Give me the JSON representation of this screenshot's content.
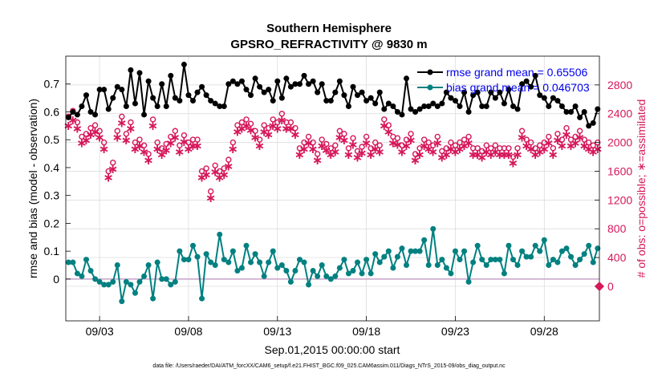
{
  "chart_data": {
    "type": "line",
    "title": "Southern Hemisphere",
    "subtitle": "GPSRO_REFRACTIVITY @ 9830 m",
    "xlabel": "Sep.01,2015 00:00:00 start",
    "ylabel": "rmse and bias (model - observation)",
    "y2label": "# of obs: o=possible; ∗=assimilated",
    "footnote": "data file: /Users/raeder/DAI/ATM_forcXX/CAM6_setup/f.e21.FHIST_BGC.f09_025.CAM6assim.011/Diags_NTrS_2015-09/obs_diag_output.nc",
    "x_tick_labels": [
      "09/03",
      "09/08",
      "09/13",
      "09/18",
      "09/23",
      "09/28"
    ],
    "x_tick_days": [
      3,
      8,
      13,
      18,
      23,
      28
    ],
    "xlim": [
      1.1,
      31.1
    ],
    "ylim": [
      -0.15,
      0.8
    ],
    "y_ticks": [
      0,
      0.1,
      0.2,
      0.3,
      0.4,
      0.5,
      0.6,
      0.7
    ],
    "y2lim": [
      -480,
      3200
    ],
    "y2_ticks": [
      0,
      400,
      800,
      1200,
      1600,
      2000,
      2400,
      2800
    ],
    "grid": true,
    "legend_position": "top-right",
    "colors": {
      "rmse": "#000000",
      "bias": "#008080",
      "obs": "#d6175a",
      "zero_line": "#c8a2c8",
      "grid": "#d8d8d8"
    },
    "series": [
      {
        "name": "rmse grand mean = 0.65506",
        "axis": "left",
        "start_day": 1.25,
        "step_days": 0.25,
        "values": [
          0.58,
          0.6,
          0.59,
          0.62,
          0.66,
          0.6,
          0.59,
          0.68,
          0.68,
          0.61,
          0.65,
          0.69,
          0.68,
          0.62,
          0.75,
          0.63,
          0.74,
          0.59,
          0.71,
          0.65,
          0.62,
          0.7,
          0.62,
          0.73,
          0.65,
          0.64,
          0.77,
          0.66,
          0.64,
          0.67,
          0.69,
          0.66,
          0.64,
          0.63,
          0.62,
          0.62,
          0.7,
          0.71,
          0.7,
          0.71,
          0.68,
          0.66,
          0.72,
          0.69,
          0.67,
          0.68,
          0.64,
          0.71,
          0.65,
          0.72,
          0.69,
          0.7,
          0.7,
          0.73,
          0.7,
          0.71,
          0.67,
          0.7,
          0.64,
          0.64,
          0.67,
          0.71,
          0.66,
          0.62,
          0.69,
          0.66,
          0.67,
          0.64,
          0.65,
          0.63,
          0.67,
          0.61,
          0.63,
          0.62,
          0.6,
          0.59,
          0.72,
          0.61,
          0.6,
          0.61,
          0.62,
          0.62,
          0.63,
          0.62,
          0.63,
          0.67,
          0.65,
          0.64,
          0.62,
          0.67,
          0.6,
          0.66,
          0.67,
          0.62,
          0.62,
          0.67,
          0.65,
          0.67,
          0.63,
          0.68,
          0.62,
          0.61,
          0.7,
          0.71,
          0.69,
          0.73,
          0.66,
          0.65,
          0.62,
          0.65,
          0.64,
          0.62,
          0.6,
          0.6,
          0.62,
          0.58,
          0.6,
          0.55,
          0.56,
          0.61,
          0.58,
          0.69,
          0.64,
          0.66,
          0.65,
          0.68
        ]
      },
      {
        "name": "bias grand mean = 0.046703",
        "axis": "left",
        "start_day": 1.25,
        "step_days": 0.25,
        "values": [
          0.06,
          0.06,
          0.02,
          0.01,
          0.07,
          0.03,
          0.0,
          -0.01,
          -0.02,
          -0.02,
          -0.01,
          0.05,
          -0.08,
          -0.01,
          -0.02,
          -0.05,
          -0.01,
          0.01,
          0.05,
          -0.07,
          0.06,
          0.0,
          0.0,
          -0.02,
          -0.01,
          0.1,
          0.07,
          0.07,
          0.12,
          0.08,
          -0.07,
          0.09,
          0.06,
          0.05,
          0.16,
          0.07,
          0.06,
          0.1,
          0.03,
          0.04,
          0.12,
          0.06,
          0.09,
          0.06,
          0.01,
          0.06,
          0.1,
          0.04,
          0.05,
          0.03,
          -0.01,
          0.03,
          0.07,
          0.06,
          -0.02,
          0.03,
          0.01,
          0.05,
          0.01,
          0.0,
          0.01,
          0.04,
          0.07,
          0.02,
          0.03,
          0.06,
          0.02,
          0.07,
          0.02,
          0.09,
          0.06,
          0.08,
          0.1,
          0.04,
          0.08,
          0.11,
          0.05,
          0.1,
          0.1,
          0.1,
          0.14,
          0.05,
          0.18,
          0.05,
          0.07,
          0.04,
          0.02,
          0.1,
          0.07,
          0.1,
          -0.01,
          0.06,
          0.12,
          0.07,
          0.05,
          0.07,
          0.07,
          0.07,
          0.02,
          0.12,
          0.07,
          0.05,
          0.1,
          0.08,
          0.08,
          0.12,
          0.1,
          0.14,
          0.05,
          0.07,
          0.06,
          0.1,
          0.11,
          0.08,
          0.05,
          0.07,
          0.09,
          0.12,
          0.06,
          0.11,
          0.04,
          0.08,
          0.05,
          -0.01,
          0.03,
          0.06
        ]
      },
      {
        "name": "# of obs possible",
        "axis": "right",
        "marker": "o",
        "start_day": 1.25,
        "step_days": 0.25,
        "values": [
          2360,
          2440,
          2280,
          2080,
          2120,
          2200,
          2240,
          2160,
          2000,
          1600,
          1720,
          2160,
          2360,
          2120,
          2280,
          2000,
          2040,
          1960,
          1840,
          2320,
          2000,
          1920,
          1980,
          2080,
          2160,
          1960,
          2100,
          2000,
          2040,
          2040,
          1600,
          1640,
          1320,
          1680,
          1600,
          1640,
          1760,
          2000,
          2240,
          2280,
          2320,
          2260,
          2160,
          2040,
          2240,
          2200,
          2320,
          2280,
          2400,
          2280,
          2280,
          2200,
          1920,
          2000,
          2080,
          2000,
          1840,
          2040,
          1980,
          1920,
          1960,
          2160,
          2120,
          1920,
          2060,
          1880,
          1940,
          2080,
          1920,
          2000,
          1960,
          2320,
          2240,
          2080,
          2060,
          1960,
          2040,
          2120,
          1840,
          1920,
          2040,
          2000,
          1960,
          2080,
          1880,
          1920,
          2000,
          1960,
          2000,
          2040,
          2080,
          1920,
          1920,
          1880,
          1960,
          1920,
          1960,
          1920,
          1920,
          1920,
          1800,
          1920,
          2160,
          2040,
          2000,
          1920,
          1960,
          2000,
          2080,
          1920,
          2120,
          2040,
          2200,
          2040,
          2080,
          2160,
          2040,
          2000,
          1960,
          2000,
          1960,
          1920,
          1920,
          2040,
          1960,
          2000
        ]
      },
      {
        "name": "# of obs assimilated",
        "axis": "right",
        "marker": "*",
        "start_day": 1.25,
        "step_days": 0.25,
        "values": [
          2240,
          2320,
          2200,
          2000,
          2040,
          2120,
          2160,
          2080,
          1920,
          1520,
          1640,
          2080,
          2280,
          2040,
          2200,
          1920,
          1960,
          1880,
          1760,
          2240,
          1920,
          1840,
          1900,
          2000,
          2080,
          1880,
          2020,
          1920,
          1960,
          1960,
          1520,
          1560,
          1240,
          1600,
          1520,
          1560,
          1680,
          1920,
          2160,
          2200,
          2240,
          2180,
          2080,
          1960,
          2160,
          2120,
          2240,
          2200,
          2320,
          2200,
          2200,
          2120,
          1840,
          1920,
          2000,
          1920,
          1760,
          1960,
          1900,
          1840,
          1880,
          2080,
          2040,
          1840,
          1980,
          1800,
          1860,
          2000,
          1840,
          1920,
          1880,
          2240,
          2160,
          2000,
          1980,
          1880,
          1960,
          2040,
          1760,
          1840,
          1960,
          1920,
          1880,
          2000,
          1800,
          1840,
          1920,
          1880,
          1920,
          1960,
          2000,
          1840,
          1840,
          1800,
          1880,
          1840,
          1880,
          1840,
          1840,
          1840,
          1720,
          1840,
          2080,
          1960,
          1920,
          1840,
          1880,
          1920,
          2000,
          1840,
          2040,
          1960,
          2120,
          1960,
          2000,
          2080,
          1960,
          1920,
          1880,
          1920,
          1880,
          1840,
          1840,
          1960,
          1880,
          1920
        ]
      }
    ]
  }
}
